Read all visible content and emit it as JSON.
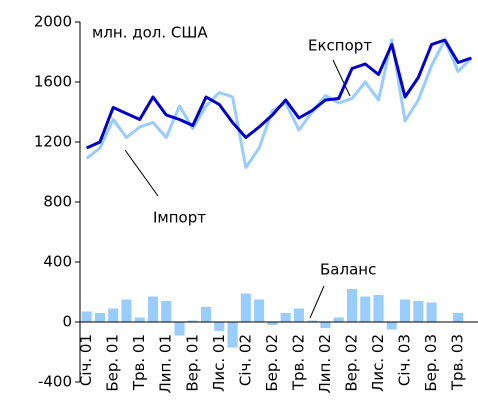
{
  "chart_data": {
    "type": "combo",
    "annotations": [
      "млн. дол. США",
      "Експорт",
      "Імпорт",
      "Баланс"
    ],
    "categories": [
      "Січ. 01",
      null,
      "Бер. 01",
      null,
      "Трв. 01",
      null,
      "Лип. 01",
      null,
      "Вер. 01",
      null,
      "Лис. 01",
      null,
      "Січ. 02",
      null,
      "Бер. 02",
      null,
      "Трв. 02",
      null,
      "Лип. 02",
      null,
      "Вер. 02",
      null,
      "Лис. 02",
      null,
      "Січ. 03",
      null,
      "Бер. 03",
      null,
      "Трв. 03",
      null
    ],
    "series": [
      {
        "name": "Баланс",
        "type": "bar",
        "color": "#99ccff",
        "values": [
          70,
          60,
          90,
          150,
          30,
          170,
          140,
          -90,
          10,
          100,
          -60,
          -170,
          190,
          150,
          -20,
          60,
          90,
          10,
          -40,
          30,
          220,
          170,
          180,
          -50,
          150,
          140,
          130,
          0,
          60,
          0
        ]
      },
      {
        "name": "Імпорт",
        "type": "line",
        "color": "#99ccff",
        "values": [
          1090,
          1160,
          1350,
          1230,
          1300,
          1330,
          1230,
          1440,
          1290,
          1440,
          1530,
          1500,
          1030,
          1160,
          1410,
          1460,
          1280,
          1400,
          1510,
          1460,
          1490,
          1600,
          1480,
          1880,
          1340,
          1480,
          1710,
          1880,
          1670,
          1760
        ]
      },
      {
        "name": "Експорт",
        "type": "line",
        "color": "#0000cc",
        "values": [
          1160,
          1200,
          1430,
          1390,
          1350,
          1500,
          1380,
          1350,
          1310,
          1500,
          1450,
          1330,
          1230,
          1300,
          1380,
          1480,
          1360,
          1410,
          1480,
          1490,
          1690,
          1720,
          1650,
          1850,
          1500,
          1630,
          1850,
          1880,
          1730,
          1760
        ]
      }
    ],
    "ylim": [
      -400,
      2000
    ],
    "yticks": [
      -400,
      0,
      400,
      800,
      1200,
      1600,
      2000
    ]
  }
}
